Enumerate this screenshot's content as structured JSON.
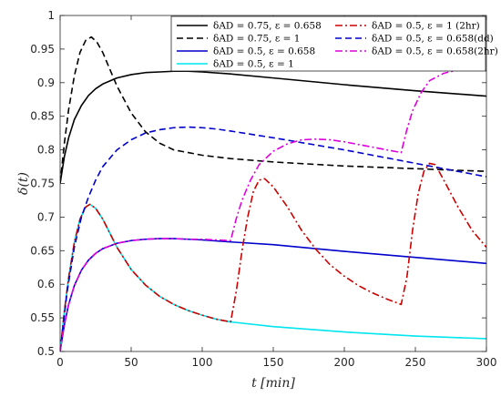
{
  "chart_data": {
    "type": "line",
    "xlabel": "t [min]",
    "ylabel": "δ(t)",
    "xlim": [
      0,
      300
    ],
    "ylim": [
      0.5,
      1.0
    ],
    "xticks": [
      0,
      50,
      100,
      150,
      200,
      250,
      300
    ],
    "xtick_labels": [
      "0",
      "50",
      "100",
      "150",
      "200",
      "250",
      "300"
    ],
    "yticks": [
      0.5,
      0.55,
      0.6,
      0.65,
      0.7,
      0.75,
      0.8,
      0.85,
      0.9,
      0.95,
      1.0
    ],
    "ytick_labels": [
      "0.5",
      "0.55",
      "0.6",
      "0.65",
      "0.7",
      "0.75",
      "0.8",
      "0.85",
      "0.9",
      "0.95",
      "1"
    ],
    "grid": false,
    "legend_position": "top-right",
    "series": [
      {
        "name": "δAD = 0.75, ε = 0.658",
        "color": "#000000",
        "dash": "solid",
        "x": [
          0,
          3,
          6,
          10,
          15,
          20,
          25,
          30,
          40,
          50,
          60,
          70,
          80,
          90,
          100,
          120,
          150,
          200,
          250,
          300
        ],
        "y": [
          0.75,
          0.79,
          0.818,
          0.845,
          0.866,
          0.881,
          0.891,
          0.898,
          0.907,
          0.912,
          0.915,
          0.916,
          0.917,
          0.917,
          0.916,
          0.913,
          0.907,
          0.897,
          0.888,
          0.88
        ]
      },
      {
        "name": "δAD = 0.75, ε = 1",
        "color": "#000000",
        "dash": "dashed",
        "x": [
          0,
          3,
          6,
          10,
          14,
          18,
          22,
          26,
          30,
          35,
          40,
          50,
          60,
          70,
          80,
          100,
          120,
          150,
          200,
          250,
          300
        ],
        "y": [
          0.75,
          0.81,
          0.86,
          0.91,
          0.945,
          0.963,
          0.968,
          0.96,
          0.945,
          0.92,
          0.895,
          0.855,
          0.827,
          0.81,
          0.8,
          0.792,
          0.787,
          0.782,
          0.776,
          0.772,
          0.768
        ]
      },
      {
        "name": "δAD = 0.5, ε = 0.658",
        "color": "#0000cc",
        "dash": "solid",
        "x": [
          0,
          3,
          6,
          10,
          15,
          20,
          25,
          30,
          40,
          50,
          60,
          70,
          80,
          90,
          100,
          120,
          150,
          200,
          250,
          300
        ],
        "y": [
          0.5,
          0.54,
          0.57,
          0.598,
          0.621,
          0.636,
          0.646,
          0.653,
          0.661,
          0.665,
          0.667,
          0.668,
          0.668,
          0.667,
          0.666,
          0.663,
          0.659,
          0.649,
          0.64,
          0.631
        ]
      },
      {
        "name": "δAD = 0.5, ε = 1",
        "color": "#00e5ee",
        "dash": "solid",
        "x": [
          0,
          3,
          6,
          10,
          14,
          18,
          21,
          25,
          30,
          35,
          40,
          50,
          60,
          70,
          80,
          90,
          100,
          110,
          120,
          150,
          200,
          250,
          300
        ],
        "y": [
          0.5,
          0.56,
          0.61,
          0.662,
          0.697,
          0.715,
          0.719,
          0.713,
          0.697,
          0.676,
          0.655,
          0.622,
          0.599,
          0.582,
          0.57,
          0.561,
          0.554,
          0.548,
          0.544,
          0.537,
          0.529,
          0.523,
          0.519
        ]
      },
      {
        "name": "δAD = 0.5, ε = 1 (2hr)",
        "color": "#cc0000",
        "dash": "dashdot",
        "x": [
          0,
          3,
          6,
          10,
          14,
          18,
          21,
          25,
          30,
          35,
          40,
          50,
          60,
          70,
          80,
          90,
          100,
          110,
          120,
          124,
          128,
          132,
          136,
          140,
          144,
          150,
          160,
          170,
          180,
          190,
          200,
          210,
          220,
          230,
          240,
          244,
          248,
          252,
          256,
          260,
          264,
          270,
          280,
          290,
          300
        ],
        "y": [
          0.5,
          0.56,
          0.61,
          0.662,
          0.697,
          0.715,
          0.719,
          0.713,
          0.697,
          0.676,
          0.655,
          0.622,
          0.599,
          0.582,
          0.57,
          0.561,
          0.554,
          0.548,
          0.544,
          0.59,
          0.65,
          0.7,
          0.738,
          0.755,
          0.757,
          0.745,
          0.715,
          0.68,
          0.652,
          0.629,
          0.612,
          0.598,
          0.587,
          0.578,
          0.57,
          0.61,
          0.68,
          0.735,
          0.768,
          0.78,
          0.778,
          0.755,
          0.715,
          0.68,
          0.655
        ]
      },
      {
        "name": "δAD = 0.5, ε = 0.658(dd)",
        "color": "#0000cc",
        "dash": "dashed",
        "x": [
          0,
          5,
          10,
          15,
          20,
          25,
          30,
          40,
          50,
          60,
          70,
          80,
          90,
          100,
          110,
          120,
          150,
          200,
          250,
          300
        ],
        "y": [
          0.5,
          0.59,
          0.655,
          0.7,
          0.73,
          0.755,
          0.775,
          0.8,
          0.815,
          0.825,
          0.83,
          0.833,
          0.834,
          0.833,
          0.831,
          0.828,
          0.818,
          0.8,
          0.78,
          0.76
        ]
      },
      {
        "name": "δAD = 0.5, ε = 0.658(2hr)",
        "color": "#dd00dd",
        "dash": "dashdot",
        "x": [
          0,
          3,
          6,
          10,
          15,
          20,
          25,
          30,
          40,
          50,
          60,
          70,
          80,
          90,
          100,
          110,
          120,
          124,
          128,
          134,
          140,
          150,
          160,
          170,
          180,
          190,
          200,
          210,
          220,
          230,
          240,
          244,
          248,
          254,
          260,
          270,
          280,
          290,
          300
        ],
        "y": [
          0.5,
          0.54,
          0.57,
          0.598,
          0.621,
          0.636,
          0.646,
          0.653,
          0.661,
          0.665,
          0.667,
          0.668,
          0.668,
          0.667,
          0.667,
          0.666,
          0.665,
          0.698,
          0.725,
          0.755,
          0.778,
          0.798,
          0.809,
          0.815,
          0.816,
          0.815,
          0.812,
          0.808,
          0.804,
          0.8,
          0.796,
          0.83,
          0.858,
          0.885,
          0.903,
          0.914,
          0.919,
          0.92,
          0.918
        ]
      }
    ]
  }
}
